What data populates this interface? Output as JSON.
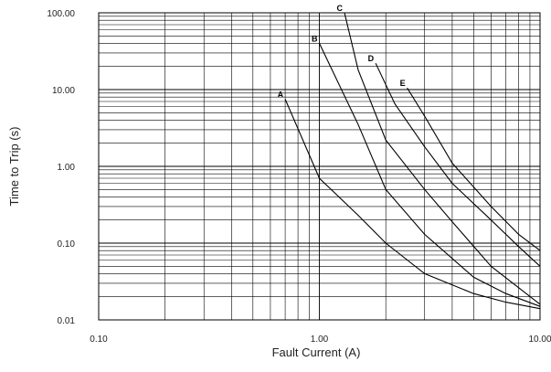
{
  "chart_data": {
    "type": "line",
    "title": "",
    "xlabel": "Fault Current (A)",
    "ylabel": "Time to Trip (s)",
    "x_scale": "log",
    "y_scale": "log",
    "xlim": [
      0.1,
      10
    ],
    "ylim": [
      0.01,
      100
    ],
    "grid": true,
    "x_ticks": [
      "0.10",
      "1.00",
      "10.00"
    ],
    "y_ticks": [
      "100.00",
      "10.00",
      "1.00",
      "0.10",
      "0.01"
    ],
    "series": [
      {
        "name": "A",
        "points": [
          [
            0.7,
            7.5
          ],
          [
            1.0,
            0.7
          ],
          [
            1.5,
            0.23
          ],
          [
            2.0,
            0.1
          ],
          [
            3.0,
            0.04
          ],
          [
            5.0,
            0.022
          ],
          [
            7.0,
            0.017
          ],
          [
            10.0,
            0.014
          ]
        ]
      },
      {
        "name": "B",
        "points": [
          [
            1.0,
            40.0
          ],
          [
            1.5,
            3.5
          ],
          [
            2.0,
            0.5
          ],
          [
            3.0,
            0.13
          ],
          [
            5.0,
            0.036
          ],
          [
            7.0,
            0.022
          ],
          [
            10.0,
            0.015
          ]
        ]
      },
      {
        "name": "C",
        "points": [
          [
            1.3,
            100.0
          ],
          [
            1.5,
            18.0
          ],
          [
            2.0,
            2.2
          ],
          [
            3.0,
            0.5
          ],
          [
            4.0,
            0.19
          ],
          [
            6.0,
            0.05
          ],
          [
            10.0,
            0.016
          ]
        ]
      },
      {
        "name": "D",
        "points": [
          [
            1.8,
            22.0
          ],
          [
            2.2,
            6.5
          ],
          [
            3.0,
            1.8
          ],
          [
            4.0,
            0.6
          ],
          [
            6.0,
            0.2
          ],
          [
            8.0,
            0.09
          ],
          [
            10.0,
            0.05
          ]
        ]
      },
      {
        "name": "E",
        "points": [
          [
            2.5,
            10.5
          ],
          [
            3.0,
            4.5
          ],
          [
            4.0,
            1.1
          ],
          [
            6.0,
            0.3
          ],
          [
            8.0,
            0.13
          ],
          [
            10.0,
            0.08
          ]
        ]
      }
    ]
  }
}
